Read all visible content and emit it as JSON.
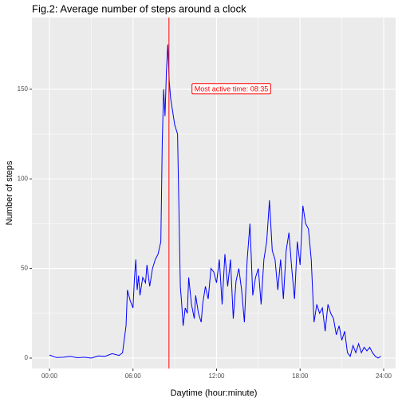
{
  "chart_data": {
    "type": "line",
    "title": "Fig.2: Average number of steps around a clock",
    "x_label": "Daytime (hour:minute)",
    "y_label": "Number of steps",
    "xlim": [
      -1.26,
      24.86
    ],
    "ylim": [
      -5.8,
      190
    ],
    "xticks": [
      {
        "value": 0,
        "label": "00:00"
      },
      {
        "value": 6,
        "label": "06:00"
      },
      {
        "value": 12,
        "label": "12:00"
      },
      {
        "value": 18,
        "label": "18:00"
      },
      {
        "value": 24,
        "label": "24:00"
      }
    ],
    "yticks": [
      0,
      50,
      100,
      150
    ],
    "grid": true,
    "vline": {
      "x": 8.5833,
      "color": "#ff0000"
    },
    "annotation": {
      "text": "Most active time: 08:35",
      "x": 13.06,
      "y": 150,
      "color": "#ff0000"
    },
    "series": [
      {
        "color": "#0000ff",
        "x": [
          0,
          0.5,
          1,
          1.5,
          2,
          2.5,
          3,
          3.5,
          4,
          4.5,
          5,
          5.25,
          5.5,
          5.6,
          5.8,
          6,
          6.1,
          6.2,
          6.3,
          6.4,
          6.5,
          6.7,
          6.9,
          7,
          7.2,
          7.4,
          7.6,
          7.8,
          8,
          8.1,
          8.2,
          8.3,
          8.4,
          8.5,
          8.6,
          8.7,
          8.8,
          9,
          9.2,
          9.4,
          9.5,
          9.6,
          9.75,
          9.9,
          10,
          10.2,
          10.4,
          10.5,
          10.7,
          10.9,
          11,
          11.2,
          11.4,
          11.6,
          11.8,
          12,
          12.2,
          12.4,
          12.6,
          12.8,
          13,
          13.2,
          13.4,
          13.6,
          13.8,
          14,
          14.2,
          14.4,
          14.6,
          14.8,
          15,
          15.2,
          15.4,
          15.6,
          15.8,
          16,
          16.2,
          16.4,
          16.6,
          16.8,
          17,
          17.2,
          17.4,
          17.6,
          17.8,
          18,
          18.2,
          18.4,
          18.6,
          18.8,
          19,
          19.2,
          19.4,
          19.6,
          19.8,
          20,
          20.2,
          20.4,
          20.6,
          20.8,
          21,
          21.2,
          21.4,
          21.6,
          21.8,
          22,
          22.2,
          22.4,
          22.6,
          22.8,
          23,
          23.2,
          23.4,
          23.6,
          23.8
        ],
        "values": [
          1.7,
          0.3,
          0.5,
          1,
          0.2,
          0.5,
          0,
          1.2,
          1,
          2.5,
          1.5,
          3,
          18,
          38,
          32,
          28,
          44,
          55,
          38,
          46,
          35,
          45,
          42,
          52,
          40,
          50,
          55,
          58,
          65,
          120,
          150,
          135,
          160,
          175,
          155,
          145,
          140,
          130,
          125,
          40,
          30,
          18,
          28,
          25,
          45,
          30,
          22,
          35,
          25,
          20,
          30,
          40,
          33,
          50,
          48,
          42,
          55,
          30,
          58,
          40,
          55,
          22,
          43,
          50,
          38,
          20,
          55,
          75,
          35,
          45,
          50,
          30,
          55,
          65,
          88,
          60,
          55,
          38,
          55,
          33,
          60,
          70,
          50,
          33,
          65,
          52,
          85,
          75,
          72,
          55,
          20,
          30,
          25,
          28,
          15,
          30,
          25,
          22,
          13,
          18,
          10,
          15,
          3,
          1,
          7,
          3,
          8,
          3,
          6,
          4,
          6,
          3,
          1,
          0,
          1
        ]
      }
    ]
  }
}
